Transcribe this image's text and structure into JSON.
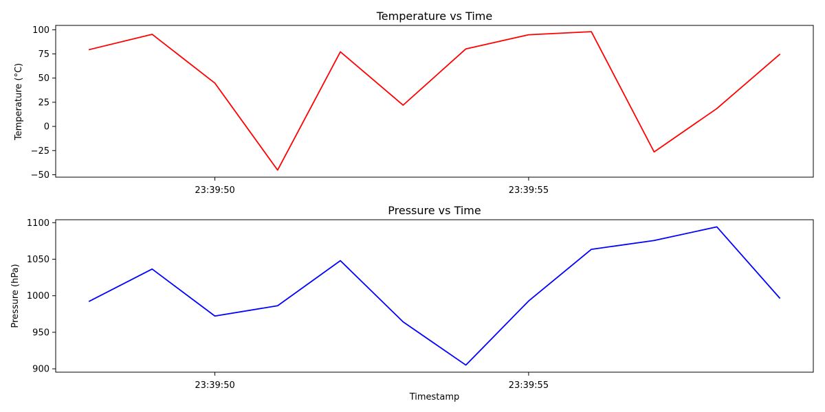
{
  "chart_data": [
    {
      "type": "line",
      "title": "Temperature vs Time",
      "xlabel": "",
      "ylabel": "Temperature (°C)",
      "x": [
        "23:39:48",
        "23:39:49",
        "23:39:50",
        "23:39:51",
        "23:39:52",
        "23:39:53",
        "23:39:54",
        "23:39:55",
        "23:39:56",
        "23:39:57",
        "23:39:58",
        "23:39:59"
      ],
      "x_ticks": [
        "23:39:50",
        "23:39:55"
      ],
      "y_ticks": [
        100,
        75,
        50,
        25,
        0,
        -25,
        -50
      ],
      "ylim": [
        -52.5,
        104.5
      ],
      "series": [
        {
          "color": "#ff0000",
          "values": [
            79.5,
            95.3,
            44.8,
            -45.2,
            77.2,
            22.0,
            80.2,
            94.8,
            98.0,
            -26.4,
            18.5,
            74.5
          ]
        }
      ],
      "grid": false,
      "legend": false
    },
    {
      "type": "line",
      "title": "Pressure vs Time",
      "xlabel": "Timestamp",
      "ylabel": "Pressure (hPa)",
      "x": [
        "23:39:48",
        "23:39:49",
        "23:39:50",
        "23:39:51",
        "23:39:52",
        "23:39:53",
        "23:39:54",
        "23:39:55",
        "23:39:56",
        "23:39:57",
        "23:39:58",
        "23:39:59"
      ],
      "x_ticks": [
        "23:39:50",
        "23:39:55"
      ],
      "y_ticks": [
        1100,
        1050,
        1000,
        950,
        900
      ],
      "ylim": [
        895.4,
        1104.0
      ],
      "series": [
        {
          "color": "#0000ff",
          "values": [
            992.5,
            1036.5,
            972.2,
            986.3,
            1048.0,
            964.2,
            905.1,
            992.8,
            1063.5,
            1075.6,
            1094.2,
            996.9
          ]
        }
      ],
      "grid": false,
      "legend": false
    }
  ]
}
